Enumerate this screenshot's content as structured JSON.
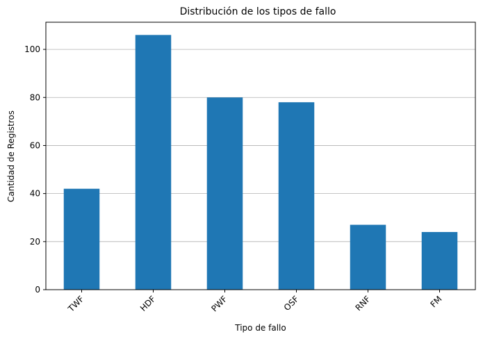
{
  "chart_data": {
    "type": "bar",
    "title": "Distribución de los tipos de fallo",
    "xlabel": "Tipo de fallo",
    "ylabel": "Cantidad de Registros",
    "categories": [
      "TWF",
      "HDF",
      "PWF",
      "OSF",
      "RNF",
      "FM"
    ],
    "values": [
      42,
      106,
      80,
      78,
      27,
      24
    ],
    "ylim": [
      0,
      111.3
    ],
    "yticks": [
      0,
      20,
      40,
      60,
      80,
      100
    ],
    "grid": "horizontal",
    "bar_color": "#1f77b4",
    "grid_color": "#b0b0b0"
  }
}
